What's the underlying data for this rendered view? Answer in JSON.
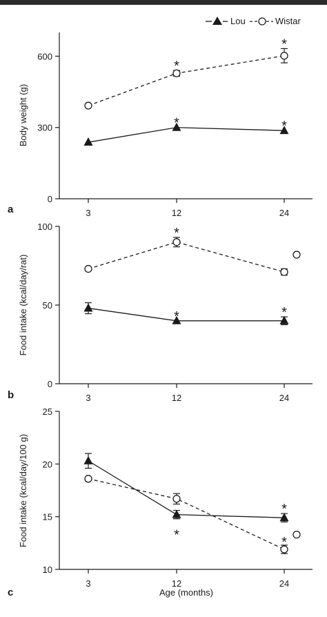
{
  "legend": {
    "lou": "Lou",
    "wistar": "Wistar"
  },
  "colors": {
    "ink": "#1a1a1a",
    "background": "#ffffff",
    "top_bar": "#2b2b2b"
  },
  "chart_data": [
    {
      "type": "line",
      "panel": "a",
      "ylabel": "Body weight (g)",
      "xlabel": "",
      "categories": [
        "3",
        "12",
        "24"
      ],
      "x": [
        3,
        12,
        24
      ],
      "ylim": [
        0,
        700
      ],
      "yticks": [
        0,
        300,
        600
      ],
      "series": [
        {
          "name": "Lou",
          "marker": "filled-triangle",
          "line": "solid",
          "values": [
            238,
            300,
            287
          ],
          "errors": [
            0,
            0,
            0
          ],
          "significant": [
            false,
            true,
            true
          ]
        },
        {
          "name": "Wistar",
          "marker": "open-circle",
          "line": "dashed",
          "values": [
            392,
            528,
            602
          ],
          "errors": [
            0,
            12,
            30
          ],
          "significant": [
            false,
            true,
            true
          ]
        }
      ]
    },
    {
      "type": "line",
      "panel": "b",
      "ylabel": "Food intake (kcal/day/rat)",
      "xlabel": "",
      "categories": [
        "3",
        "12",
        "24"
      ],
      "x": [
        3,
        12,
        24
      ],
      "ylim": [
        0,
        100
      ],
      "yticks": [
        0,
        50,
        100
      ],
      "series": [
        {
          "name": "Lou",
          "marker": "filled-triangle",
          "line": "solid",
          "values": [
            48,
            40,
            40
          ],
          "errors": [
            3.5,
            0,
            2.5
          ],
          "significant": [
            false,
            true,
            true
          ]
        },
        {
          "name": "Wistar",
          "marker": "open-circle",
          "line": "dashed",
          "values": [
            73,
            90,
            71
          ],
          "errors": [
            0,
            3,
            2
          ],
          "significant": [
            false,
            true,
            false
          ]
        }
      ],
      "extra_points": [
        {
          "series": "Wistar",
          "x": 24,
          "value": 82,
          "marker": "open-circle",
          "offset": "right"
        }
      ]
    },
    {
      "type": "line",
      "panel": "c",
      "ylabel": "Food intake (kcal/day/100 g)",
      "xlabel": "Age (months)",
      "categories": [
        "3",
        "12",
        "24"
      ],
      "x": [
        3,
        12,
        24
      ],
      "ylim": [
        10,
        25
      ],
      "yticks": [
        10,
        15,
        20,
        25
      ],
      "series": [
        {
          "name": "Lou",
          "marker": "filled-triangle",
          "line": "solid",
          "values": [
            20.3,
            15.2,
            14.9
          ],
          "errors": [
            0.7,
            0.4,
            0.4
          ],
          "significant": [
            false,
            true,
            true
          ]
        },
        {
          "name": "Wistar",
          "marker": "open-circle",
          "line": "dashed",
          "values": [
            18.6,
            16.7,
            11.9
          ],
          "errors": [
            0,
            0.5,
            0.4
          ],
          "significant": [
            false,
            false,
            true
          ]
        }
      ],
      "extra_points": [
        {
          "series": "Wistar",
          "x": 24,
          "value": 13.3,
          "marker": "open-circle",
          "offset": "right"
        }
      ]
    }
  ]
}
